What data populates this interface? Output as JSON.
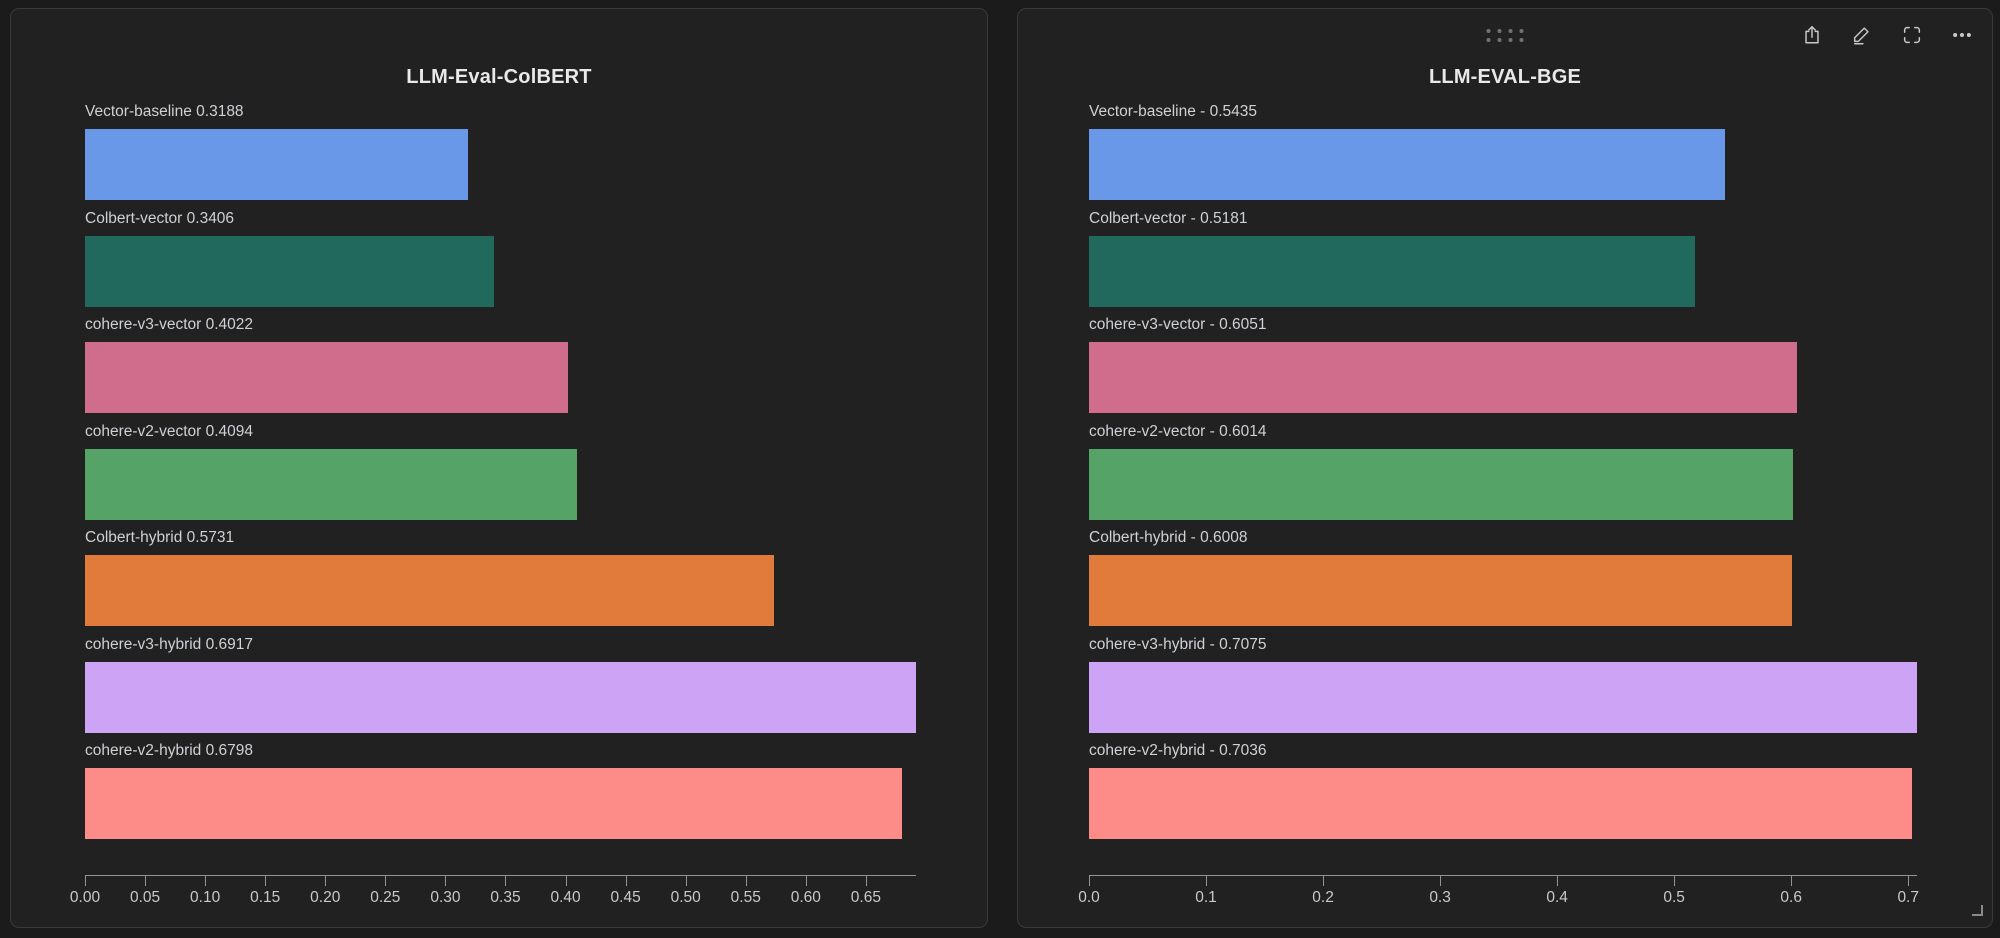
{
  "app": {
    "background_color": "#1b1b1b",
    "card_background_color": "#212121",
    "card_border_color": "#3a3a3a"
  },
  "toolbar": {
    "icons": [
      "share-icon",
      "edit-icon",
      "fullscreen-icon",
      "more-icon"
    ]
  },
  "chart_data": [
    {
      "type": "bar",
      "orientation": "horizontal",
      "title": "LLM-Eval-ColBERT",
      "categories": [
        "Vector-baseline",
        "Colbert-vector",
        "cohere-v3-vector",
        "cohere-v2-vector",
        "Colbert-hybrid",
        "cohere-v3-hybrid",
        "cohere-v2-hybrid"
      ],
      "values": [
        0.3188,
        0.3406,
        0.4022,
        0.4094,
        0.5731,
        0.6917,
        0.6798
      ],
      "bar_labels": [
        "Vector-baseline 0.3188",
        "Colbert-vector 0.3406",
        "cohere-v3-vector 0.4022",
        "cohere-v2-vector 0.4094",
        "Colbert-hybrid 0.5731",
        "cohere-v3-hybrid 0.6917",
        "cohere-v2-hybrid 0.6798"
      ],
      "colors": [
        "#6a98e8",
        "#20695c",
        "#d06d8d",
        "#56a368",
        "#e07b3c",
        "#cda4f5",
        "#fd8b87"
      ],
      "xlabel": "",
      "ylabel": "",
      "xlim": [
        0,
        0.6917
      ],
      "xticks": [
        0,
        0.05,
        0.1,
        0.15,
        0.2,
        0.25,
        0.3,
        0.35,
        0.4,
        0.45,
        0.5,
        0.55,
        0.6,
        0.65
      ],
      "xtick_labels": [
        "0.00",
        "0.05",
        "0.10",
        "0.15",
        "0.20",
        "0.25",
        "0.30",
        "0.35",
        "0.40",
        "0.45",
        "0.50",
        "0.55",
        "0.60",
        "0.65"
      ],
      "grid": false,
      "legend": false
    },
    {
      "type": "bar",
      "orientation": "horizontal",
      "title": "LLM-EVAL-BGE",
      "categories": [
        "Vector-baseline",
        "Colbert-vector",
        "cohere-v3-vector",
        "cohere-v2-vector",
        "Colbert-hybrid",
        "cohere-v3-hybrid",
        "cohere-v2-hybrid"
      ],
      "values": [
        0.5435,
        0.5181,
        0.6051,
        0.6014,
        0.6008,
        0.7075,
        0.7036
      ],
      "bar_labels": [
        "Vector-baseline - 0.5435",
        "Colbert-vector - 0.5181",
        "cohere-v3-vector - 0.6051",
        "cohere-v2-vector - 0.6014",
        "Colbert-hybrid - 0.6008",
        "cohere-v3-hybrid - 0.7075",
        "cohere-v2-hybrid - 0.7036"
      ],
      "colors": [
        "#6a98e8",
        "#20695c",
        "#d06d8d",
        "#56a368",
        "#e07b3c",
        "#cda4f5",
        "#fd8b87"
      ],
      "xlabel": "",
      "ylabel": "",
      "xlim": [
        0,
        0.7075
      ],
      "xticks": [
        0,
        0.1,
        0.2,
        0.3,
        0.4,
        0.5,
        0.6,
        0.7
      ],
      "xtick_labels": [
        "0.0",
        "0.1",
        "0.2",
        "0.3",
        "0.4",
        "0.5",
        "0.6",
        "0.7"
      ],
      "grid": false,
      "legend": false
    }
  ]
}
